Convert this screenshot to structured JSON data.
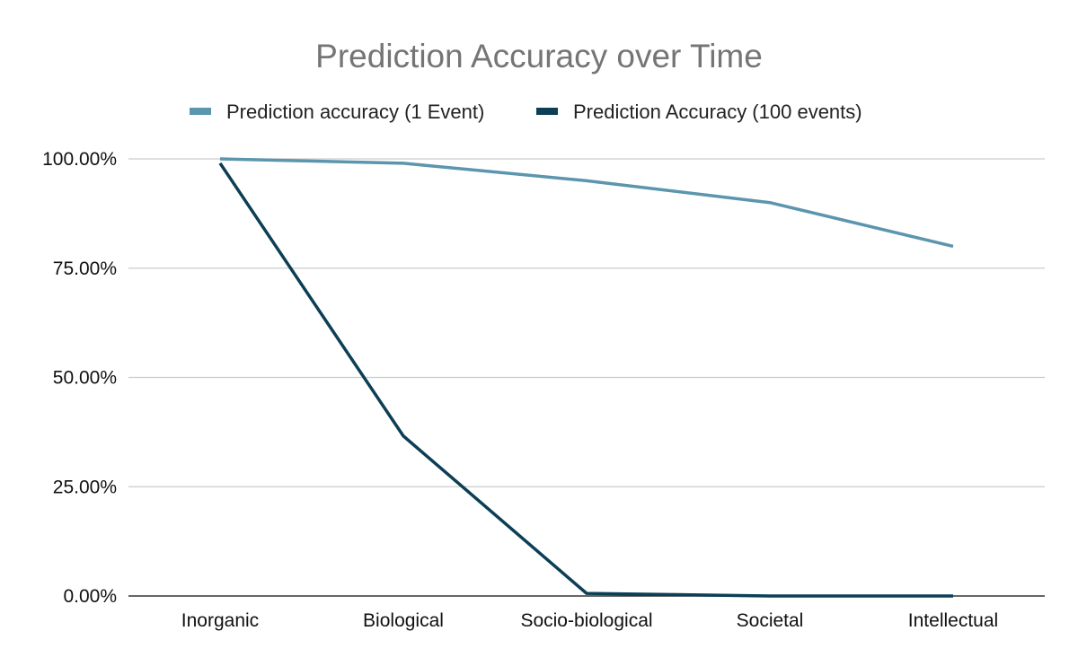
{
  "chart_data": {
    "type": "line",
    "title": "Prediction Accuracy over Time",
    "xlabel": "",
    "ylabel": "",
    "categories": [
      "Inorganic",
      "Biological",
      "Socio-biological",
      "Societal",
      "Intellectual"
    ],
    "series": [
      {
        "name": "Prediction accuracy (1 Event)",
        "values": [
          1.0,
          0.99,
          0.95,
          0.9,
          0.8
        ],
        "color": "#5b95ae"
      },
      {
        "name": "Prediction Accuracy (100 events)",
        "values": [
          0.99,
          0.366,
          0.0059,
          0.0,
          0.0
        ],
        "color": "#0c3f56"
      }
    ],
    "ylim": [
      0,
      1
    ],
    "yticks": [
      0,
      0.25,
      0.5,
      0.75,
      1.0
    ],
    "ytick_labels": [
      "0.00%",
      "25.00%",
      "50.00%",
      "75.00%",
      "100.00%"
    ],
    "grid": true,
    "legend_position": "top-center",
    "gridline_color": "#cccccc",
    "axis_color": "#333333"
  }
}
